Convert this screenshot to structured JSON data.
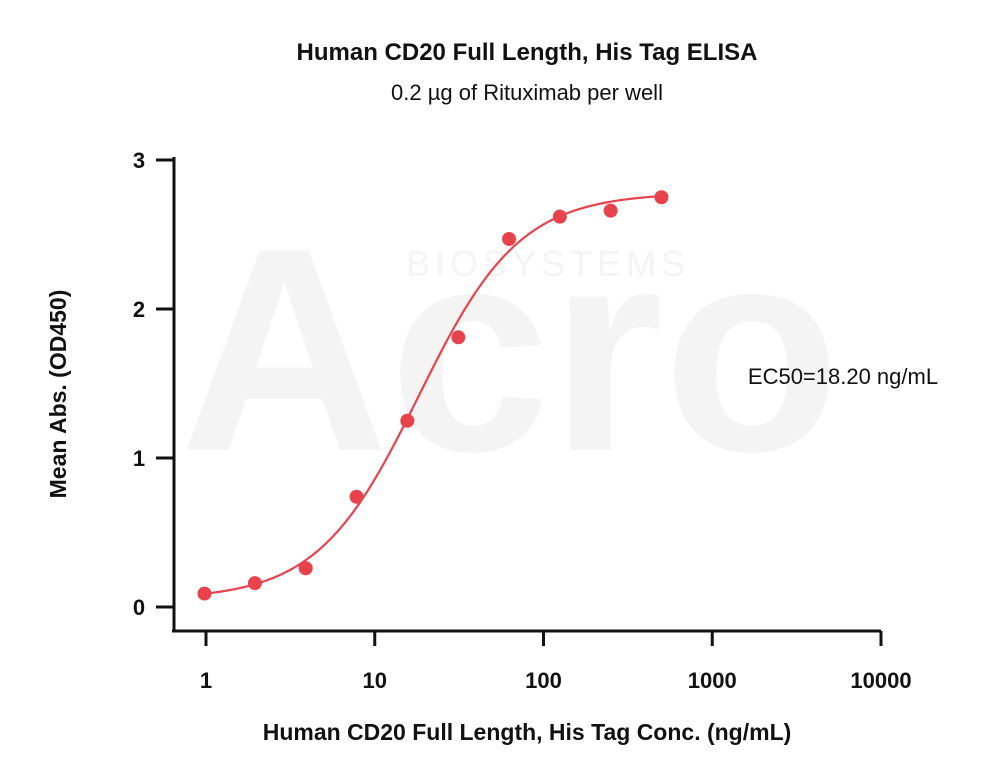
{
  "chart_data": {
    "type": "scatter",
    "title": "Human CD20 Full Length, His Tag ELISA",
    "subtitle": "0.2 µg of Rituximab per well",
    "xlabel": "Human CD20 Full Length, His Tag Conc. (ng/mL)",
    "ylabel": "Mean Abs. (OD450)",
    "x_scale": "log",
    "xlim": [
      1,
      10000
    ],
    "ylim": [
      0,
      3
    ],
    "x_ticks": [
      1,
      10,
      100,
      1000,
      10000
    ],
    "x_tick_labels": [
      "1",
      "10",
      "100",
      "1000",
      "10000"
    ],
    "y_ticks": [
      0,
      1,
      2,
      3
    ],
    "y_tick_labels": [
      "0",
      "1",
      "2",
      "3"
    ],
    "grid": false,
    "series": [
      {
        "color": "#e8434c",
        "points": [
          {
            "x": 0.98,
            "y": 0.09
          },
          {
            "x": 1.95,
            "y": 0.16
          },
          {
            "x": 3.9,
            "y": 0.26
          },
          {
            "x": 7.8,
            "y": 0.74
          },
          {
            "x": 15.6,
            "y": 1.25
          },
          {
            "x": 31.3,
            "y": 1.81
          },
          {
            "x": 62.5,
            "y": 2.47
          },
          {
            "x": 125,
            "y": 2.62
          },
          {
            "x": 250,
            "y": 2.66
          },
          {
            "x": 500,
            "y": 2.75
          }
        ],
        "fit": {
          "model": "4PL",
          "bottom": 0.05,
          "top": 2.78,
          "ec50": 18.2,
          "hill": 1.45,
          "x_range": [
            1,
            500
          ]
        }
      }
    ],
    "annotations": [
      {
        "text": "EC50=18.20 ng/mL"
      }
    ],
    "watermark": {
      "logo": "Acro",
      "text": "BIOSYSTEMS"
    }
  }
}
